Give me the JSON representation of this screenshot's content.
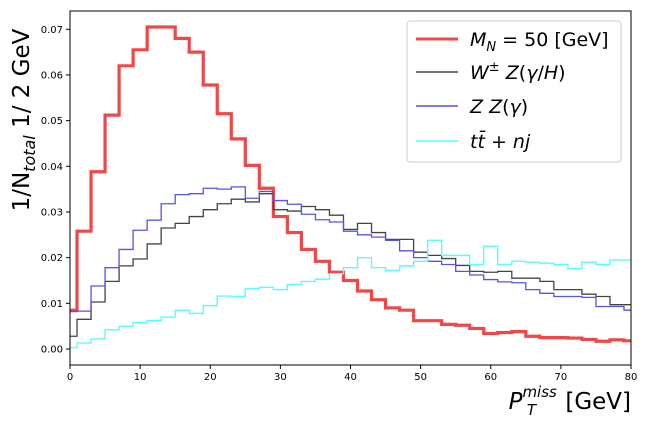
{
  "chart_data": {
    "type": "line",
    "title": "",
    "xlabel": "P_T^miss [GeV]",
    "ylabel": "1/N_total 1/ 2 GeV",
    "xlim": [
      0,
      80
    ],
    "ylim": [
      -0.0035,
      0.074
    ],
    "x_ticks": [
      "0",
      "10",
      "20",
      "30",
      "40",
      "50",
      "60",
      "70",
      "80"
    ],
    "y_ticks": [
      "0.00",
      "0.01",
      "0.02",
      "0.03",
      "0.04",
      "0.05",
      "0.06",
      "0.07"
    ],
    "grid": false,
    "legend_position": "top-right",
    "step_edges": [
      0,
      1,
      3,
      5,
      7,
      9,
      11,
      13,
      15,
      17,
      19,
      21,
      23,
      25,
      27,
      29,
      31,
      33,
      35,
      37,
      39,
      41,
      43,
      45,
      47,
      49,
      51,
      53,
      55,
      57,
      59,
      61,
      63,
      65,
      67,
      69,
      71,
      73,
      75,
      77,
      79,
      80
    ],
    "series": [
      {
        "name": "M_N = 50 [GeV]",
        "color": "#f04848",
        "values": [
          0.0085,
          0.0258,
          0.0388,
          0.0512,
          0.062,
          0.0655,
          0.0705,
          0.0705,
          0.068,
          0.065,
          0.0578,
          0.0515,
          0.046,
          0.0402,
          0.0352,
          0.029,
          0.0255,
          0.0218,
          0.0192,
          0.0168,
          0.015,
          0.0127,
          0.0108,
          0.009,
          0.0085,
          0.0062,
          0.0062,
          0.0054,
          0.0052,
          0.0045,
          0.0034,
          0.0036,
          0.0038,
          0.0028,
          0.0025,
          0.0025,
          0.0024,
          0.0021,
          0.0017,
          0.002,
          0.0018
        ]
      },
      {
        "name": "W± Z(γ/H)",
        "color": "#444444",
        "values": [
          0.0028,
          0.0065,
          0.0103,
          0.0148,
          0.0182,
          0.0197,
          0.023,
          0.0265,
          0.0275,
          0.029,
          0.0305,
          0.0318,
          0.0328,
          0.0322,
          0.034,
          0.0305,
          0.0302,
          0.0312,
          0.0305,
          0.0293,
          0.0262,
          0.0275,
          0.0255,
          0.024,
          0.024,
          0.0212,
          0.0205,
          0.0198,
          0.0183,
          0.017,
          0.0168,
          0.017,
          0.0155,
          0.0155,
          0.0148,
          0.013,
          0.013,
          0.012,
          0.0115,
          0.0097,
          0.0097
        ]
      },
      {
        "name": "Z Z(γ)",
        "color": "#5555e8",
        "values": [
          0.0082,
          0.0083,
          0.0138,
          0.0178,
          0.0218,
          0.026,
          0.0282,
          0.0318,
          0.0338,
          0.034,
          0.0352,
          0.035,
          0.0355,
          0.033,
          0.0345,
          0.0325,
          0.0317,
          0.0295,
          0.0283,
          0.0278,
          0.0258,
          0.025,
          0.0245,
          0.0238,
          0.0215,
          0.02,
          0.0192,
          0.0185,
          0.017,
          0.0162,
          0.0152,
          0.0147,
          0.0145,
          0.013,
          0.0122,
          0.0115,
          0.0115,
          0.0113,
          0.0093,
          0.0093,
          0.0085
        ]
      },
      {
        "name": "tt̄ + nj",
        "color": "#55ffff",
        "values": [
          0.0003,
          0.0013,
          0.0022,
          0.0042,
          0.005,
          0.0058,
          0.0062,
          0.007,
          0.0085,
          0.0078,
          0.0095,
          0.0116,
          0.0115,
          0.0132,
          0.0135,
          0.013,
          0.0141,
          0.0148,
          0.0153,
          0.0165,
          0.0178,
          0.02,
          0.0178,
          0.0172,
          0.0182,
          0.0192,
          0.0238,
          0.0205,
          0.0205,
          0.0185,
          0.0225,
          0.0185,
          0.0192,
          0.019,
          0.0188,
          0.0185,
          0.0176,
          0.019,
          0.0185,
          0.0195,
          0.0195
        ]
      }
    ]
  }
}
